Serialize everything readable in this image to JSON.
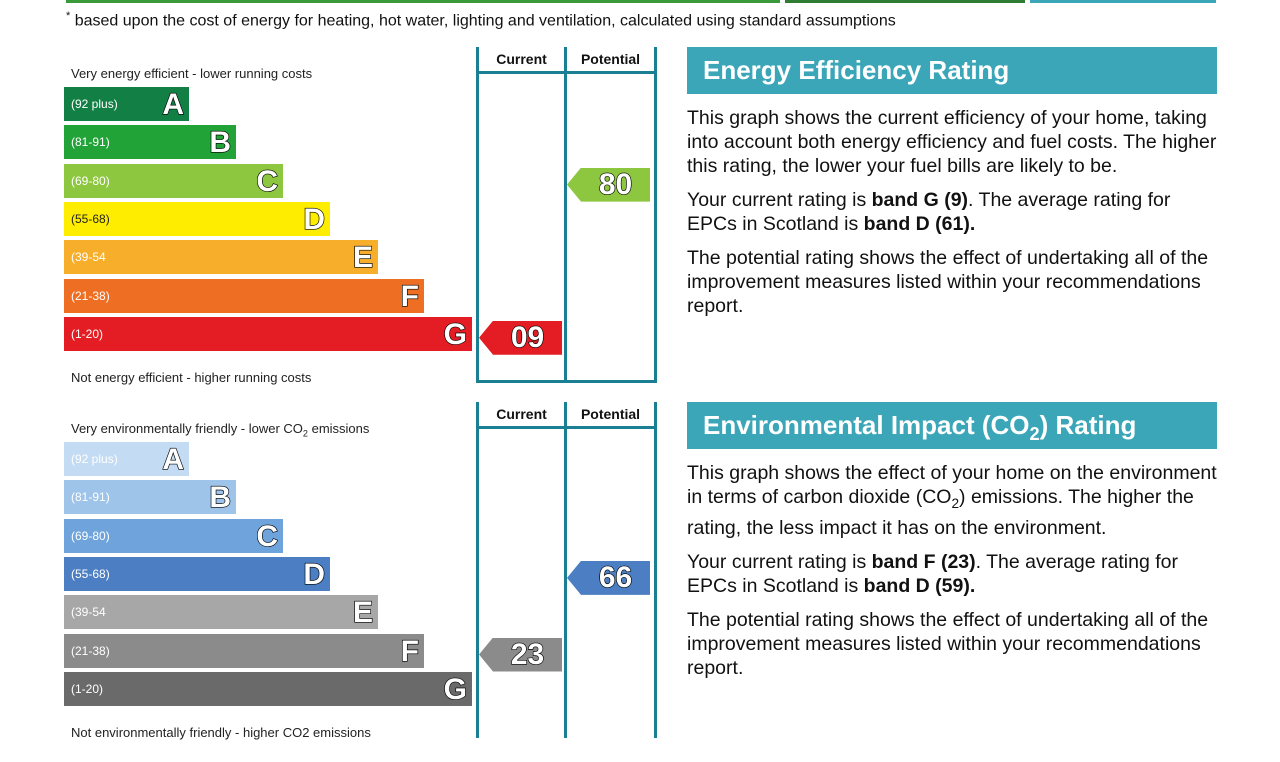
{
  "footnote": {
    "mark": "*",
    "text": "based upon the cost of energy for heating, hot water, lighting and ventilation, calculated using standard assumptions"
  },
  "colors": {
    "teal": "#3ba6b8",
    "border": "#1b7f93",
    "top_green": "#3a9a3a",
    "top_dark_green": "#2e7d32",
    "top_teal": "#3ba6b8"
  },
  "energy_chart": {
    "top_label": "Very energy efficient - lower running costs",
    "bottom_label": "Not energy efficient - higher running costs",
    "current_header": "Current",
    "potential_header": "Potential",
    "bands": [
      {
        "letter": "A",
        "range": "(92 plus)",
        "color": "#128045"
      },
      {
        "letter": "B",
        "range": "(81-91)",
        "color": "#22a338"
      },
      {
        "letter": "C",
        "range": "(69-80)",
        "color": "#8dc63f"
      },
      {
        "letter": "D",
        "range": "(55-68)",
        "color": "#ffed00"
      },
      {
        "letter": "E",
        "range": "(39-54",
        "color": "#f7ae2a"
      },
      {
        "letter": "F",
        "range": "(21-38)",
        "color": "#ee6f24"
      },
      {
        "letter": "G",
        "range": "(1-20)",
        "color": "#e31d23"
      }
    ],
    "current": {
      "value": "09",
      "band": "G"
    },
    "potential": {
      "value": "80",
      "band": "C"
    }
  },
  "environment_chart": {
    "top_label_pre": "Very environmentally friendly - lower CO",
    "top_label_sub": "2",
    "top_label_post": " emissions",
    "bottom_label": "Not environmentally friendly - higher CO2 emissions",
    "current_header": "Current",
    "potential_header": "Potential",
    "bands": [
      {
        "letter": "A",
        "range": "(92 plus)",
        "color": "#c3dbf3"
      },
      {
        "letter": "B",
        "range": "(81-91)",
        "color": "#9ec4ea"
      },
      {
        "letter": "C",
        "range": "(69-80)",
        "color": "#6ea3dc"
      },
      {
        "letter": "D",
        "range": "(55-68)",
        "color": "#4b7ec2"
      },
      {
        "letter": "E",
        "range": "(39-54",
        "color": "#a7a7a7"
      },
      {
        "letter": "F",
        "range": "(21-38)",
        "color": "#8b8b8b"
      },
      {
        "letter": "G",
        "range": "(1-20)",
        "color": "#6a6a6a"
      }
    ],
    "current": {
      "value": "23",
      "band": "F"
    },
    "potential": {
      "value": "66",
      "band": "D"
    }
  },
  "energy_panel": {
    "title": "Energy Efficiency Rating",
    "p1": "This graph shows the current efficiency of your home, taking into account both energy efficiency and fuel costs. The higher this rating, the lower your fuel bills are likely to be.",
    "p2_a": "Your current rating is ",
    "p2_b": "band G (9)",
    "p2_c": ". The average rating for EPCs in Scotland is ",
    "p2_d": "band D (61).",
    "p3": "The potential rating shows the effect of undertaking all of the improvement measures listed within your recommendations report."
  },
  "environment_panel": {
    "title_pre": "Environmental Impact (CO",
    "title_sub": "2",
    "title_post": ") Rating",
    "p1_a": "This graph shows the effect of your home on the environment in terms of carbon dioxide (CO",
    "p1_sub": "2",
    "p1_b": ") emissions. The higher the rating, the less impact it has on the environment.",
    "p2_a": "Your current rating is ",
    "p2_b": "band F (23)",
    "p2_c": ". The average rating for EPCs in Scotland is ",
    "p2_d": "band D (59).",
    "p3": "The potential rating shows the effect of undertaking all of the improvement measures listed within your recommendations report."
  }
}
